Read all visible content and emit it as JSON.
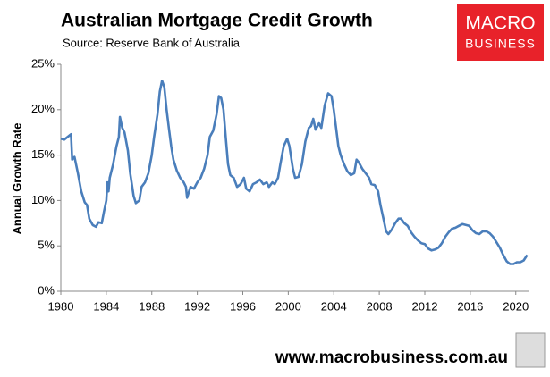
{
  "chart_data": {
    "type": "line",
    "title": "Australian Mortgage Credit Growth",
    "subtitle": "Source: Reserve Bank of Australia",
    "ylabel": "Annual Growth Rate",
    "x": [
      1980.0,
      1980.3,
      1980.6,
      1980.9,
      1981.0,
      1981.2,
      1981.5,
      1981.8,
      1982.1,
      1982.3,
      1982.5,
      1982.8,
      1983.1,
      1983.3,
      1983.6,
      1983.8,
      1984.0,
      1984.1,
      1984.2,
      1984.3,
      1984.6,
      1984.9,
      1985.1,
      1985.2,
      1985.4,
      1985.6,
      1985.9,
      1986.1,
      1986.4,
      1986.6,
      1986.9,
      1987.1,
      1987.4,
      1987.7,
      1988.0,
      1988.2,
      1988.5,
      1988.7,
      1988.9,
      1989.1,
      1989.3,
      1989.5,
      1989.7,
      1989.9,
      1990.2,
      1990.5,
      1990.8,
      1991.0,
      1991.1,
      1991.4,
      1991.7,
      1992.0,
      1992.3,
      1992.6,
      1992.9,
      1993.1,
      1993.4,
      1993.7,
      1993.9,
      1994.1,
      1994.3,
      1994.5,
      1994.7,
      1994.9,
      1995.2,
      1995.5,
      1995.8,
      1996.1,
      1996.3,
      1996.6,
      1996.9,
      1997.2,
      1997.5,
      1997.8,
      1998.1,
      1998.3,
      1998.6,
      1998.8,
      1999.1,
      1999.3,
      1999.6,
      1999.9,
      2000.1,
      2000.4,
      2000.6,
      2000.9,
      2001.2,
      2001.5,
      2001.8,
      2002.0,
      2002.2,
      2002.4,
      2002.7,
      2002.9,
      2003.2,
      2003.5,
      2003.8,
      2004.0,
      2004.2,
      2004.4,
      2004.6,
      2004.9,
      2005.2,
      2005.5,
      2005.8,
      2006.0,
      2006.2,
      2006.5,
      2006.8,
      2007.1,
      2007.3,
      2007.6,
      2007.9,
      2008.1,
      2008.4,
      2008.6,
      2008.8,
      2009.1,
      2009.4,
      2009.7,
      2009.9,
      2010.2,
      2010.5,
      2010.8,
      2011.1,
      2011.4,
      2011.7,
      2012.0,
      2012.3,
      2012.6,
      2012.9,
      2013.2,
      2013.5,
      2013.8,
      2014.1,
      2014.4,
      2014.7,
      2015.0,
      2015.3,
      2015.6,
      2015.9,
      2016.2,
      2016.5,
      2016.8,
      2017.1,
      2017.4,
      2017.7,
      2018.0,
      2018.3,
      2018.6,
      2018.9,
      2019.2,
      2019.5,
      2019.8,
      2020.1,
      2020.4,
      2020.7,
      2020.9,
      2021.0
    ],
    "series": [
      {
        "name": "Mortgage credit growth",
        "color": "#4a7ebb",
        "values": [
          16.8,
          16.7,
          17.0,
          17.3,
          14.5,
          14.8,
          13.0,
          11.0,
          9.8,
          9.5,
          8.0,
          7.3,
          7.1,
          7.6,
          7.5,
          8.8,
          10.0,
          12.0,
          11.0,
          12.5,
          14.0,
          16.0,
          17.0,
          19.2,
          18.0,
          17.5,
          15.5,
          13.0,
          10.5,
          9.7,
          10.0,
          11.5,
          12.0,
          13.0,
          15.0,
          17.0,
          19.5,
          22.0,
          23.2,
          22.5,
          20.0,
          18.0,
          16.0,
          14.5,
          13.3,
          12.5,
          12.0,
          11.5,
          10.3,
          11.5,
          11.3,
          12.0,
          12.5,
          13.5,
          15.0,
          17.0,
          17.7,
          19.5,
          21.5,
          21.3,
          20.0,
          17.0,
          14.0,
          12.8,
          12.5,
          11.5,
          11.8,
          12.5,
          11.3,
          11.0,
          11.8,
          12.0,
          12.3,
          11.8,
          12.0,
          11.5,
          12.0,
          11.8,
          12.5,
          14.0,
          16.0,
          16.8,
          16.0,
          13.5,
          12.5,
          12.6,
          14.0,
          16.5,
          18.0,
          18.2,
          19.0,
          17.8,
          18.5,
          18.0,
          20.5,
          21.8,
          21.5,
          20.0,
          18.0,
          16.0,
          15.0,
          14.0,
          13.2,
          12.8,
          13.0,
          14.5,
          14.2,
          13.5,
          13.0,
          12.5,
          11.8,
          11.7,
          11.0,
          9.5,
          7.8,
          6.6,
          6.3,
          6.8,
          7.5,
          8.0,
          8.0,
          7.5,
          7.2,
          6.5,
          6.0,
          5.6,
          5.3,
          5.2,
          4.7,
          4.5,
          4.6,
          4.8,
          5.3,
          6.0,
          6.5,
          6.9,
          7.0,
          7.2,
          7.4,
          7.3,
          7.2,
          6.7,
          6.4,
          6.3,
          6.6,
          6.6,
          6.4,
          6.0,
          5.4,
          4.8,
          4.0,
          3.3,
          3.0,
          3.0,
          3.2,
          3.2,
          3.4,
          3.8,
          4.0
        ]
      }
    ],
    "xlim": [
      1980,
      2021.2
    ],
    "xticks": [
      1980,
      1984,
      1988,
      1992,
      1996,
      2000,
      2004,
      2008,
      2012,
      2016,
      2020
    ],
    "ylim": [
      0,
      25
    ],
    "yticks": [
      {
        "value": 0,
        "label": "0%"
      },
      {
        "value": 5,
        "label": "5%"
      },
      {
        "value": 10,
        "label": "10%"
      },
      {
        "value": 15,
        "label": "15%"
      },
      {
        "value": 20,
        "label": "20%"
      },
      {
        "value": 25,
        "label": "25%"
      }
    ],
    "grid": false
  },
  "logo": {
    "line1": "MACRO",
    "line2": "BUSINESS"
  },
  "footer": "www.macrobusiness.com.au"
}
